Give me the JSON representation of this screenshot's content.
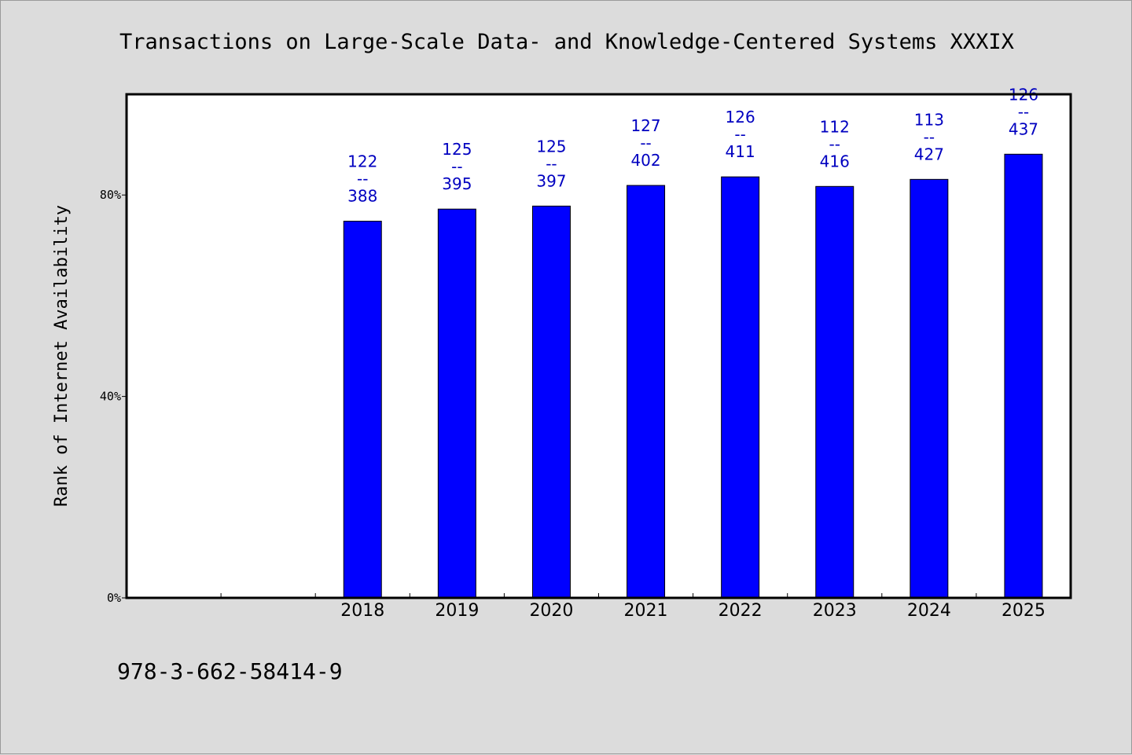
{
  "chart_data": {
    "type": "bar",
    "title": "Transactions on Large-Scale Data- and Knowledge-Centered Systems XXXIX",
    "xlabel": "",
    "ylabel": "Rank of Internet Availability",
    "ylim": [
      0,
      100
    ],
    "y_ticks": [
      {
        "value": 0,
        "label": "0%"
      },
      {
        "value": 40,
        "label": "40%"
      },
      {
        "value": 80,
        "label": "80%"
      }
    ],
    "x_slots": [
      "",
      "",
      "2018",
      "2019",
      "2020",
      "2021",
      "2022",
      "2023",
      "2024",
      "2025"
    ],
    "categories": [
      "2018",
      "2019",
      "2020",
      "2021",
      "2022",
      "2023",
      "2024",
      "2025"
    ],
    "values": [
      74.8,
      77.2,
      77.8,
      81.9,
      83.6,
      81.7,
      83.1,
      88.1
    ],
    "data_labels": [
      {
        "top": "122",
        "sep": "--",
        "bottom": "388"
      },
      {
        "top": "125",
        "sep": "--",
        "bottom": "395"
      },
      {
        "top": "125",
        "sep": "--",
        "bottom": "397"
      },
      {
        "top": "127",
        "sep": "--",
        "bottom": "402"
      },
      {
        "top": "126",
        "sep": "--",
        "bottom": "411"
      },
      {
        "top": "112",
        "sep": "--",
        "bottom": "416"
      },
      {
        "top": "113",
        "sep": "--",
        "bottom": "427"
      },
      {
        "top": "126",
        "sep": "--",
        "bottom": "437"
      }
    ],
    "bar_color": "#0000ff",
    "label_color": "#0000c0",
    "grid": false,
    "legend": "none"
  },
  "footer": {
    "isbn": "978-3-662-58414-9"
  }
}
